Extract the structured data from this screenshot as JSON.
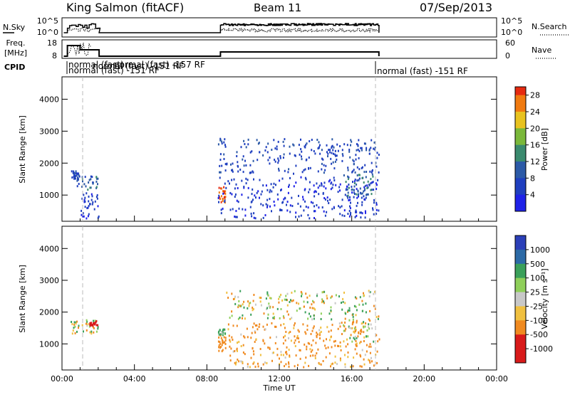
{
  "header": {
    "station": "King Salmon (fitACF)",
    "beam": "Beam 11",
    "date": "07/Sep/2013"
  },
  "panels": {
    "nsky": {
      "label": "N.Sky",
      "left_ticks": [
        "10^5",
        "10^0"
      ],
      "right_ticks": [
        "10^5",
        "10^0"
      ],
      "right_label": "N.Search"
    },
    "freq": {
      "label_line1": "Freq.",
      "label_line2": "[MHz]",
      "left_ticks": [
        "18",
        "8"
      ],
      "right_ticks": [
        "60",
        "0"
      ],
      "right_label": "Nave"
    },
    "cpid": {
      "label": "CPID",
      "entries": [
        "normal (fast)",
        "normal (fast) -151 RF",
        "normal (fast) -151 RF",
        "normal (fast) -157 RF",
        "normal (fast) -151 RF"
      ]
    }
  },
  "chart_data": [
    {
      "type": "heatmap",
      "name_param": "power",
      "xlabel": "",
      "ylabel": "Slant Range [km]",
      "x_range_hours": [
        0,
        24
      ],
      "ylim": [
        180,
        4700
      ],
      "y_ticks": [
        1000,
        2000,
        3000,
        4000
      ],
      "colorbar": {
        "label": "Power [dB]",
        "ticks": [
          "28",
          "24",
          "20",
          "16",
          "12",
          "8",
          "4"
        ],
        "range": [
          0,
          30
        ]
      },
      "scatter_blocks": [
        {
          "t0": 0.5,
          "t1": 0.9,
          "r0": 1500,
          "r1": 1800,
          "value": 6
        },
        {
          "t0": 0.8,
          "t1": 2.0,
          "r0": 1200,
          "r1": 1650,
          "value": 10
        },
        {
          "t0": 1.0,
          "t1": 2.0,
          "r0": 300,
          "r1": 1100,
          "value": 5
        },
        {
          "t0": 8.6,
          "t1": 9.0,
          "r0": 800,
          "r1": 1300,
          "value": 27
        },
        {
          "t0": 8.6,
          "t1": 17.5,
          "r0": 1700,
          "r1": 2800,
          "value": 7
        },
        {
          "t0": 8.6,
          "t1": 17.5,
          "r0": 300,
          "r1": 1600,
          "value": 5
        },
        {
          "t0": 15.5,
          "t1": 17.2,
          "r0": 1000,
          "r1": 1700,
          "value": 12
        }
      ]
    },
    {
      "type": "heatmap",
      "name_param": "velocity",
      "xlabel": "Time UT",
      "ylabel": "Slant Range [km]",
      "x_range_hours": [
        0,
        24
      ],
      "x_ticks": [
        "00:00",
        "04:00",
        "08:00",
        "12:00",
        "16:00",
        "20:00",
        "00:00"
      ],
      "ylim": [
        180,
        4700
      ],
      "y_ticks": [
        1000,
        2000,
        3000,
        4000
      ],
      "colorbar": {
        "label": "Velocity [m s⁻¹]",
        "ticks": [
          "1000",
          "500",
          "100",
          "25",
          "-25",
          "-100",
          "-500",
          "-1000"
        ]
      },
      "scatter_blocks": [
        {
          "t0": 0.4,
          "t1": 2.0,
          "r0": 1350,
          "r1": 1800,
          "value": 0
        },
        {
          "t0": 1.5,
          "t1": 2.0,
          "r0": 1600,
          "r1": 1750,
          "value": -1000
        },
        {
          "t0": 8.6,
          "t1": 9.0,
          "r0": 800,
          "r1": 1300,
          "value": -300
        },
        {
          "t0": 8.6,
          "t1": 9.0,
          "r0": 1300,
          "r1": 1500,
          "value": 150
        },
        {
          "t0": 9.0,
          "t1": 17.5,
          "r0": 1800,
          "r1": 2700,
          "value": 0
        },
        {
          "t0": 9.0,
          "t1": 17.5,
          "r0": 300,
          "r1": 1700,
          "value": -200
        },
        {
          "t0": 15.5,
          "t1": 17.2,
          "r0": 1100,
          "r1": 1800,
          "value": 0
        }
      ]
    }
  ]
}
